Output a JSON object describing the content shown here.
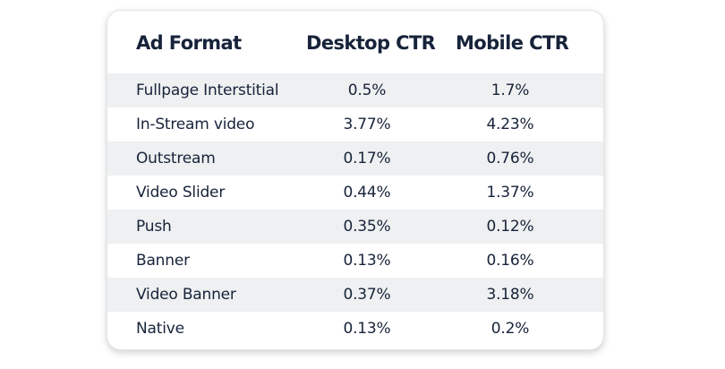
{
  "chart_data": {
    "type": "table",
    "columns": [
      "Ad Format",
      "Desktop CTR",
      "Mobile CTR"
    ],
    "rows": [
      {
        "format": "Fullpage Interstitial",
        "desktop": "0.5%",
        "mobile": "1.7%"
      },
      {
        "format": "In-Stream video",
        "desktop": "3.77%",
        "mobile": "4.23%"
      },
      {
        "format": "Outstream",
        "desktop": "0.17%",
        "mobile": "0.76%"
      },
      {
        "format": "Video Slider",
        "desktop": "0.44%",
        "mobile": "1.37%"
      },
      {
        "format": "Push",
        "desktop": "0.35%",
        "mobile": "0.12%"
      },
      {
        "format": "Banner",
        "desktop": "0.13%",
        "mobile": "0.16%"
      },
      {
        "format": "Video Banner",
        "desktop": "0.37%",
        "mobile": "3.18%"
      },
      {
        "format": "Native",
        "desktop": "0.13%",
        "mobile": "0.2%"
      }
    ],
    "colors": {
      "text": "#17233a",
      "stripe": "#eef0f1",
      "background": "#ffffff"
    }
  }
}
